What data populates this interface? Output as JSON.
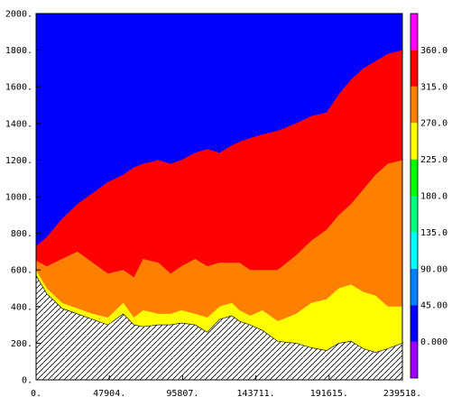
{
  "chart_data": {
    "type": "heatmap",
    "title": "",
    "xlabel": "",
    "ylabel": "",
    "xlim": [
      0,
      239518
    ],
    "ylim": [
      0,
      2000
    ],
    "x_tick_labels": [
      "0.",
      "47904.",
      "95807.",
      "143711.",
      "191615.",
      "239518."
    ],
    "x_tick_values": [
      0,
      47904,
      95807,
      143711,
      191615,
      239518
    ],
    "y_tick_labels": [
      "0.",
      "200.",
      "400.",
      "600.",
      "800.",
      "1000.",
      "1200.",
      "1400.",
      "1600.",
      "1800.",
      "2000."
    ],
    "y_tick_values": [
      0,
      200,
      400,
      600,
      800,
      1000,
      1200,
      1400,
      1600,
      1800,
      2000
    ],
    "colorbar": {
      "labels": [
        "0.000",
        "45.00",
        "90.00",
        "135.0",
        "180.0",
        "225.0",
        "270.0",
        "315.0",
        "360.0"
      ],
      "levels": [
        0,
        45,
        90,
        135,
        180,
        225,
        270,
        315,
        360
      ],
      "colors": [
        "#9b00ff",
        "#0000ff",
        "#0080ff",
        "#00ffff",
        "#00ff80",
        "#00ff00",
        "#ffff00",
        "#ff8000",
        "#ff0000",
        "#ff00ff"
      ]
    },
    "terrain": {
      "hatched": true,
      "x": [
        0,
        7000,
        17000,
        27000,
        37000,
        47000,
        57000,
        64000,
        70000,
        80000,
        88000,
        95000,
        104000,
        112000,
        120000,
        128000,
        133000,
        140000,
        148000,
        158000,
        170000,
        180000,
        190000,
        198000,
        206000,
        214000,
        222000,
        230000,
        239518
      ],
      "y": [
        570,
        470,
        390,
        360,
        330,
        300,
        360,
        300,
        290,
        300,
        300,
        310,
        300,
        260,
        330,
        350,
        320,
        300,
        270,
        210,
        200,
        175,
        160,
        200,
        210,
        170,
        150,
        170,
        200
      ]
    },
    "bands": [
      {
        "level": 0,
        "color": "#9b00ff",
        "upper_y": [
          570,
          470,
          390,
          360,
          330,
          300,
          360,
          300,
          290,
          300,
          300,
          310,
          300,
          260,
          330,
          350,
          320,
          300,
          270,
          210,
          200,
          175,
          160,
          200,
          210,
          170,
          150,
          170,
          200
        ]
      },
      {
        "level": 270,
        "color": "#ffff00",
        "upper_y": [
          600,
          500,
          420,
          390,
          360,
          340,
          420,
          340,
          380,
          360,
          360,
          380,
          360,
          340,
          400,
          420,
          380,
          350,
          380,
          320,
          360,
          420,
          440,
          500,
          520,
          480,
          460,
          400,
          400
        ]
      },
      {
        "level": 315,
        "color": "#ff8000",
        "upper_y": [
          650,
          620,
          660,
          700,
          640,
          580,
          600,
          560,
          660,
          640,
          580,
          620,
          660,
          620,
          640,
          640,
          640,
          600,
          600,
          600,
          680,
          760,
          820,
          900,
          960,
          1040,
          1120,
          1180,
          1200
        ]
      },
      {
        "level": 360,
        "color": "#ff0000",
        "upper_y": [
          730,
          780,
          880,
          960,
          1020,
          1080,
          1120,
          1160,
          1180,
          1200,
          1180,
          1200,
          1240,
          1260,
          1240,
          1280,
          1300,
          1320,
          1340,
          1360,
          1400,
          1440,
          1460,
          1560,
          1640,
          1700,
          1740,
          1780,
          1800
        ]
      },
      {
        "level": 45,
        "color": "#0000ff",
        "upper_y": [
          2000,
          2000,
          2000,
          2000,
          2000,
          2000,
          2000,
          2000,
          2000,
          2000,
          2000,
          2000,
          2000,
          2000,
          2000,
          2000,
          2000,
          2000,
          2000,
          2000,
          2000,
          2000,
          2000,
          2000,
          2000,
          2000,
          2000,
          2000,
          2000
        ]
      }
    ]
  }
}
